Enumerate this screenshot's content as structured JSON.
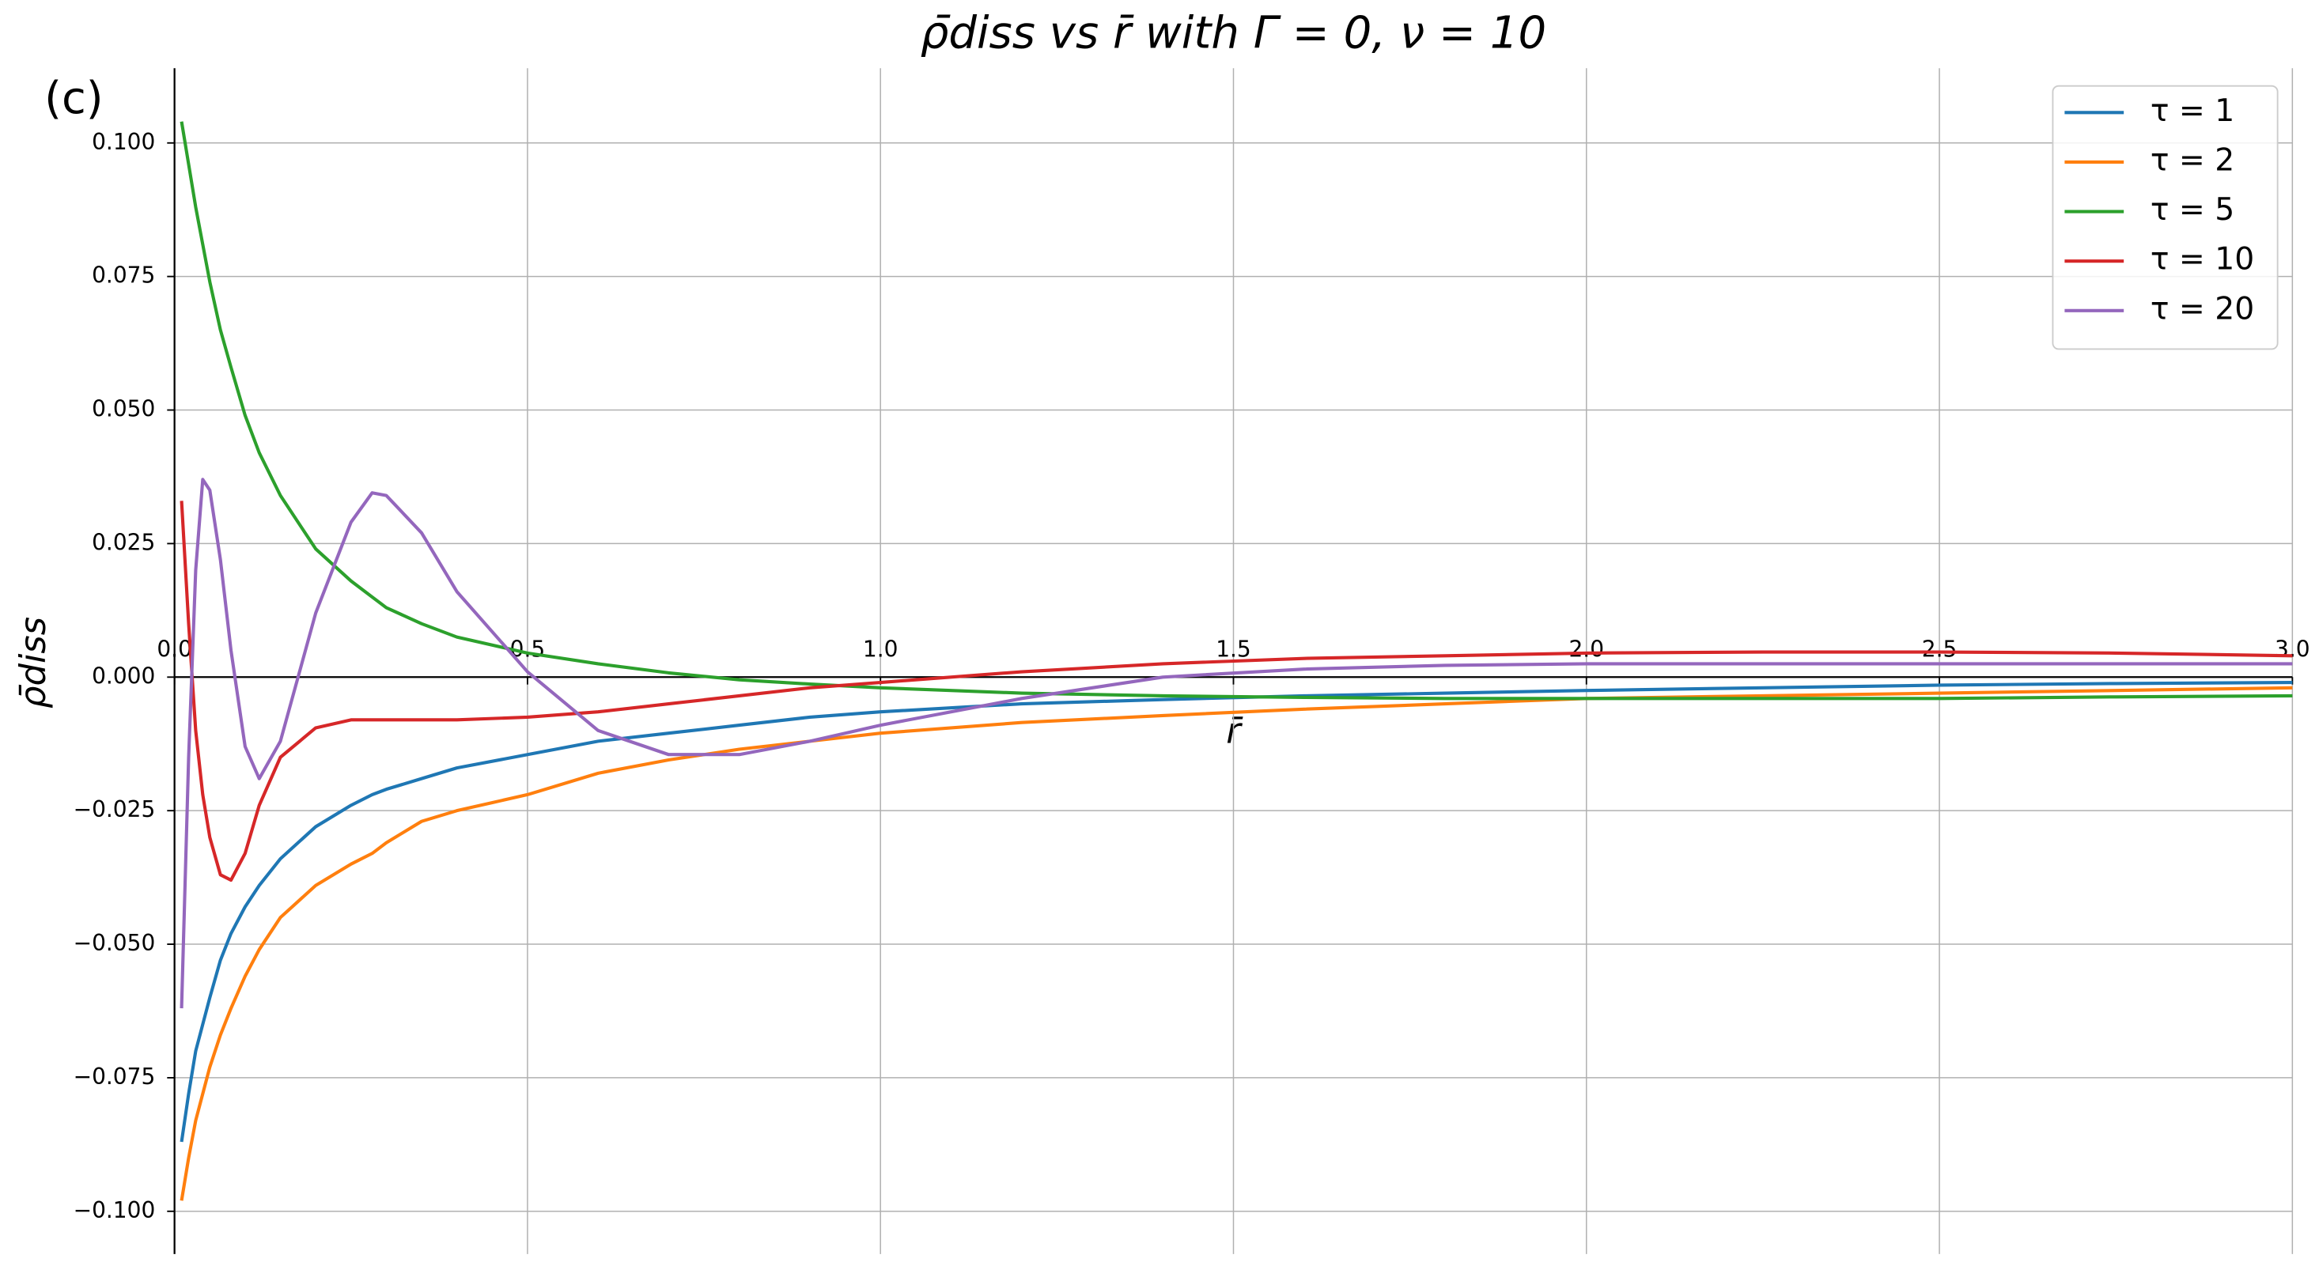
{
  "chart_data": {
    "type": "line",
    "title": "ρ̄diss  vs  r̄  with  Γ = 0, ν = 10",
    "annotation": "(c)",
    "x_label": "r̄",
    "y_label": "ρ̄diss",
    "x": [
      0.01,
      0.02,
      0.03,
      0.04,
      0.05,
      0.065,
      0.08,
      0.1,
      0.12,
      0.15,
      0.2,
      0.25,
      0.28,
      0.3,
      0.35,
      0.4,
      0.5,
      0.6,
      0.7,
      0.8,
      0.9,
      1.0,
      1.2,
      1.4,
      1.6,
      1.8,
      2.0,
      2.25,
      2.5,
      2.75,
      3.0
    ],
    "series": [
      {
        "name": "τ = 1",
        "color": "#1f77b4",
        "values": [
          -0.087,
          -0.078,
          -0.07,
          -0.065,
          -0.06,
          -0.053,
          -0.048,
          -0.043,
          -0.039,
          -0.034,
          -0.028,
          -0.024,
          -0.022,
          -0.021,
          -0.019,
          -0.017,
          -0.0145,
          -0.012,
          -0.0105,
          -0.009,
          -0.0075,
          -0.0065,
          -0.005,
          -0.0042,
          -0.0035,
          -0.003,
          -0.0025,
          -0.002,
          -0.0015,
          -0.0012,
          -0.001
        ]
      },
      {
        "name": "τ = 2",
        "color": "#ff7f0e",
        "values": [
          -0.098,
          -0.09,
          -0.083,
          -0.078,
          -0.073,
          -0.067,
          -0.062,
          -0.056,
          -0.051,
          -0.045,
          -0.039,
          -0.035,
          -0.033,
          -0.031,
          -0.027,
          -0.025,
          -0.022,
          -0.018,
          -0.0155,
          -0.0135,
          -0.012,
          -0.0105,
          -0.0085,
          -0.0072,
          -0.006,
          -0.005,
          -0.004,
          -0.0035,
          -0.003,
          -0.0025,
          -0.002
        ]
      },
      {
        "name": "τ = 5",
        "color": "#2ca02c",
        "values": [
          0.104,
          0.096,
          0.088,
          0.081,
          0.074,
          0.065,
          0.058,
          0.049,
          0.042,
          0.034,
          0.024,
          0.018,
          0.015,
          0.013,
          0.01,
          0.0075,
          0.0045,
          0.0025,
          0.0008,
          -0.0005,
          -0.0013,
          -0.002,
          -0.003,
          -0.0035,
          -0.0038,
          -0.004,
          -0.004,
          -0.004,
          -0.004,
          -0.0037,
          -0.0035
        ]
      },
      {
        "name": "τ = 10",
        "color": "#d62728",
        "values": [
          0.033,
          0.01,
          -0.01,
          -0.022,
          -0.03,
          -0.037,
          -0.038,
          -0.033,
          -0.024,
          -0.015,
          -0.0095,
          -0.008,
          -0.008,
          -0.008,
          -0.008,
          -0.008,
          -0.0075,
          -0.0065,
          -0.005,
          -0.0035,
          -0.002,
          -0.001,
          0.001,
          0.0025,
          0.0035,
          0.004,
          0.0045,
          0.0047,
          0.0047,
          0.0045,
          0.004
        ]
      },
      {
        "name": "τ = 20",
        "color": "#9467bd",
        "values": [
          -0.062,
          -0.015,
          0.02,
          0.037,
          0.035,
          0.022,
          0.005,
          -0.013,
          -0.019,
          -0.012,
          0.012,
          0.029,
          0.0345,
          0.034,
          0.027,
          0.016,
          0.001,
          -0.01,
          -0.0145,
          -0.0145,
          -0.012,
          -0.009,
          -0.004,
          0,
          0.0015,
          0.0022,
          0.0025,
          0.0025,
          0.0025,
          0.0025,
          0.0025
        ]
      }
    ],
    "xlim": [
      0,
      3.0
    ],
    "ylim": [
      -0.108,
      0.114
    ],
    "xticks": [
      {
        "value": 0,
        "label": "0.0"
      },
      0.5,
      {
        "value": 1,
        "label": "1.0"
      },
      1.5,
      {
        "value": 2,
        "label": "2.0"
      },
      2.5,
      {
        "value": 3,
        "label": "3.0"
      }
    ],
    "yticks": [
      {
        "value": -0.1,
        "label": "−0.100"
      },
      {
        "value": -0.075,
        "label": "−0.075"
      },
      {
        "value": -0.05,
        "label": "−0.050"
      },
      {
        "value": -0.025,
        "label": "−0.025"
      },
      {
        "value": 0,
        "label": "0.000"
      },
      0.025,
      {
        "value": 0.05,
        "label": "0.050"
      },
      0.075,
      {
        "value": 0.1,
        "label": "0.100"
      }
    ],
    "grid": true,
    "legend": "upper right"
  }
}
